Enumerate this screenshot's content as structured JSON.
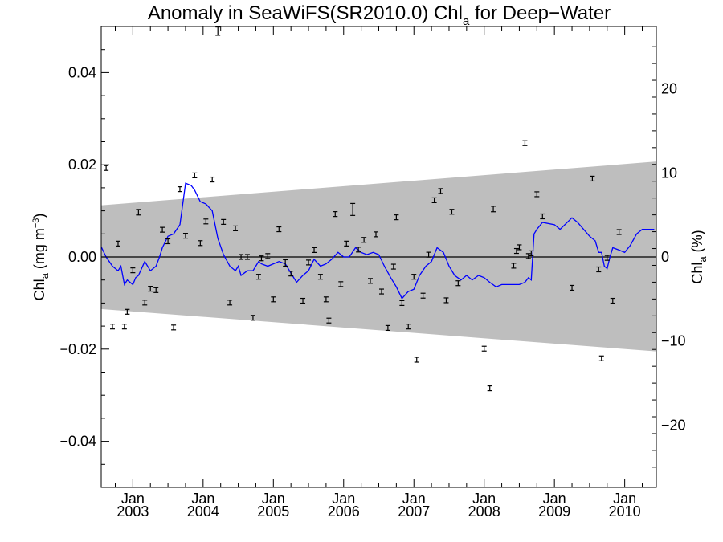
{
  "chart_data": {
    "type": "scatter",
    "title": {
      "main": "Anomaly in SeaWiFS(SR2010.0) Chl",
      "sub": "a",
      "rest": " for Deep−Water"
    },
    "ylabel_left": {
      "main": "Chl",
      "sub": "a",
      "rest": " (mg m",
      "sup": "−3",
      "end": ")"
    },
    "ylabel_right": {
      "main": "Chl",
      "sub": "a",
      "rest": " (%)"
    },
    "x_range": [
      2002.55,
      2010.45
    ],
    "y_range": [
      -0.05,
      0.05
    ],
    "y_right_range": [
      -27.4,
      27.4
    ],
    "left_ticks": [
      {
        "v": 0.04,
        "label": "0.04"
      },
      {
        "v": 0.02,
        "label": "0.02"
      },
      {
        "v": 0.0,
        "label": "0.00"
      },
      {
        "v": -0.02,
        "label": "−0.02"
      },
      {
        "v": -0.04,
        "label": "−0.04"
      }
    ],
    "right_ticks": [
      {
        "v": 20,
        "label": "20"
      },
      {
        "v": 10,
        "label": "10"
      },
      {
        "v": 0,
        "label": "0"
      },
      {
        "v": -10,
        "label": "−10"
      },
      {
        "v": -20,
        "label": "−20"
      }
    ],
    "x_ticks": [
      {
        "v": 2003.0,
        "month": "Jan",
        "year": "2003"
      },
      {
        "v": 2004.0,
        "month": "Jan",
        "year": "2004"
      },
      {
        "v": 2005.0,
        "month": "Jan",
        "year": "2005"
      },
      {
        "v": 2006.0,
        "month": "Jan",
        "year": "2006"
      },
      {
        "v": 2007.0,
        "month": "Jan",
        "year": "2007"
      },
      {
        "v": 2008.0,
        "month": "Jan",
        "year": "2008"
      },
      {
        "v": 2009.0,
        "month": "Jan",
        "year": "2009"
      },
      {
        "v": 2010.0,
        "month": "Jan",
        "year": "2010"
      }
    ],
    "band": {
      "left_x": 2002.55,
      "left_upper": 0.0112,
      "left_lower": -0.0113,
      "right_x": 2010.45,
      "right_upper": 0.0207,
      "right_lower": -0.0205,
      "color": "#bebebe"
    },
    "zero_line": 0.0,
    "points": [
      {
        "x": 2002.62,
        "y": 0.0193,
        "err": 0.0005
      },
      {
        "x": 2002.71,
        "y": -0.0151,
        "err": 0.0005
      },
      {
        "x": 2002.79,
        "y": 0.0029,
        "err": 0.0005
      },
      {
        "x": 2002.88,
        "y": -0.0151,
        "err": 0.0005
      },
      {
        "x": 2002.92,
        "y": -0.0119,
        "err": 0.0005
      },
      {
        "x": 2003.0,
        "y": -0.0029,
        "err": 0.0005
      },
      {
        "x": 2003.08,
        "y": 0.0097,
        "err": 0.0006
      },
      {
        "x": 2003.17,
        "y": -0.0099,
        "err": 0.0005
      },
      {
        "x": 2003.25,
        "y": -0.0069,
        "err": 0.0005
      },
      {
        "x": 2003.33,
        "y": -0.0072,
        "err": 0.0005
      },
      {
        "x": 2003.42,
        "y": 0.0059,
        "err": 0.0005
      },
      {
        "x": 2003.5,
        "y": 0.0034,
        "err": 0.0005
      },
      {
        "x": 2003.58,
        "y": -0.0153,
        "err": 0.0005
      },
      {
        "x": 2003.67,
        "y": 0.0147,
        "err": 0.0005
      },
      {
        "x": 2003.75,
        "y": 0.0046,
        "err": 0.0005
      },
      {
        "x": 2003.88,
        "y": 0.0177,
        "err": 0.0005
      },
      {
        "x": 2003.96,
        "y": 0.003,
        "err": 0.0005
      },
      {
        "x": 2004.04,
        "y": 0.0077,
        "err": 0.0005
      },
      {
        "x": 2004.13,
        "y": 0.0168,
        "err": 0.0005
      },
      {
        "x": 2004.21,
        "y": 0.049,
        "err": 0.0009
      },
      {
        "x": 2004.29,
        "y": 0.0076,
        "err": 0.0005
      },
      {
        "x": 2004.38,
        "y": -0.0099,
        "err": 0.0005
      },
      {
        "x": 2004.46,
        "y": 0.0062,
        "err": 0.0005
      },
      {
        "x": 2004.54,
        "y": 0.0,
        "err": 0.0005
      },
      {
        "x": 2004.63,
        "y": 0.0,
        "err": 0.0005
      },
      {
        "x": 2004.71,
        "y": -0.0132,
        "err": 0.0005
      },
      {
        "x": 2004.79,
        "y": -0.0043,
        "err": 0.0005
      },
      {
        "x": 2004.83,
        "y": -0.0003,
        "err": 0.0005
      },
      {
        "x": 2004.92,
        "y": 0.0002,
        "err": 0.0005
      },
      {
        "x": 2005.0,
        "y": -0.0092,
        "err": 0.0005
      },
      {
        "x": 2005.08,
        "y": 0.006,
        "err": 0.0005
      },
      {
        "x": 2005.17,
        "y": -0.0013,
        "err": 0.0007
      },
      {
        "x": 2005.25,
        "y": -0.0036,
        "err": 0.0005
      },
      {
        "x": 2005.42,
        "y": -0.0095,
        "err": 0.0005
      },
      {
        "x": 2005.5,
        "y": -0.0012,
        "err": 0.0005
      },
      {
        "x": 2005.58,
        "y": 0.0015,
        "err": 0.0005
      },
      {
        "x": 2005.67,
        "y": -0.0043,
        "err": 0.0005
      },
      {
        "x": 2005.75,
        "y": -0.0092,
        "err": 0.0005
      },
      {
        "x": 2005.79,
        "y": -0.0138,
        "err": 0.0005
      },
      {
        "x": 2005.88,
        "y": 0.0093,
        "err": 0.0005
      },
      {
        "x": 2005.96,
        "y": -0.0059,
        "err": 0.0005
      },
      {
        "x": 2006.04,
        "y": 0.0029,
        "err": 0.0005
      },
      {
        "x": 2006.13,
        "y": 0.0103,
        "err": 0.0013
      },
      {
        "x": 2006.21,
        "y": 0.0016,
        "err": 0.0005
      },
      {
        "x": 2006.29,
        "y": 0.0037,
        "err": 0.0005
      },
      {
        "x": 2006.38,
        "y": -0.0052,
        "err": 0.0005
      },
      {
        "x": 2006.46,
        "y": 0.0049,
        "err": 0.0005
      },
      {
        "x": 2006.54,
        "y": -0.0075,
        "err": 0.0005
      },
      {
        "x": 2006.63,
        "y": -0.0154,
        "err": 0.0005
      },
      {
        "x": 2006.71,
        "y": -0.0021,
        "err": 0.0005
      },
      {
        "x": 2006.75,
        "y": 0.0086,
        "err": 0.0005
      },
      {
        "x": 2006.83,
        "y": -0.01,
        "err": 0.0005
      },
      {
        "x": 2006.92,
        "y": -0.0151,
        "err": 0.0005
      },
      {
        "x": 2007.0,
        "y": -0.0043,
        "err": 0.0005
      },
      {
        "x": 2007.04,
        "y": -0.0223,
        "err": 0.0005
      },
      {
        "x": 2007.13,
        "y": -0.0084,
        "err": 0.0005
      },
      {
        "x": 2007.21,
        "y": 0.0005,
        "err": 0.0005
      },
      {
        "x": 2007.29,
        "y": 0.0123,
        "err": 0.0005
      },
      {
        "x": 2007.38,
        "y": 0.0143,
        "err": 0.0005
      },
      {
        "x": 2007.46,
        "y": -0.0094,
        "err": 0.0005
      },
      {
        "x": 2007.54,
        "y": 0.0098,
        "err": 0.0005
      },
      {
        "x": 2007.63,
        "y": -0.0057,
        "err": 0.0005
      },
      {
        "x": 2008.0,
        "y": -0.0199,
        "err": 0.0005
      },
      {
        "x": 2008.08,
        "y": -0.0285,
        "err": 0.0005
      },
      {
        "x": 2008.13,
        "y": 0.0104,
        "err": 0.0006
      },
      {
        "x": 2008.42,
        "y": -0.0019,
        "err": 0.0005
      },
      {
        "x": 2008.46,
        "y": 0.0013,
        "err": 0.0005
      },
      {
        "x": 2008.5,
        "y": 0.0021,
        "err": 0.0005
      },
      {
        "x": 2008.58,
        "y": 0.0247,
        "err": 0.0005
      },
      {
        "x": 2008.63,
        "y": 0.0002,
        "err": 0.0005
      },
      {
        "x": 2008.67,
        "y": 0.0008,
        "err": 0.0005
      },
      {
        "x": 2008.75,
        "y": 0.0136,
        "err": 0.0005
      },
      {
        "x": 2008.83,
        "y": 0.0088,
        "err": 0.0005
      },
      {
        "x": 2009.25,
        "y": -0.0067,
        "err": 0.0005
      },
      {
        "x": 2009.54,
        "y": 0.017,
        "err": 0.0005
      },
      {
        "x": 2009.63,
        "y": -0.0027,
        "err": 0.0005
      },
      {
        "x": 2009.67,
        "y": -0.022,
        "err": 0.0005
      },
      {
        "x": 2009.75,
        "y": -0.0002,
        "err": 0.0005
      },
      {
        "x": 2009.83,
        "y": -0.0095,
        "err": 0.0005
      },
      {
        "x": 2009.92,
        "y": 0.0054,
        "err": 0.0005
      }
    ],
    "line": {
      "color": "#0000ff",
      "x": [
        2002.55,
        2002.62,
        2002.71,
        2002.79,
        2002.83,
        2002.88,
        2002.92,
        2003.0,
        2003.04,
        2003.08,
        2003.17,
        2003.25,
        2003.33,
        2003.38,
        2003.42,
        2003.5,
        2003.58,
        2003.67,
        2003.75,
        2003.83,
        2003.88,
        2003.96,
        2004.04,
        2004.13,
        2004.21,
        2004.29,
        2004.38,
        2004.46,
        2004.5,
        2004.54,
        2004.63,
        2004.71,
        2004.75,
        2004.79,
        2004.83,
        2004.92,
        2005.0,
        2005.08,
        2005.17,
        2005.25,
        2005.33,
        2005.42,
        2005.5,
        2005.58,
        2005.67,
        2005.75,
        2005.83,
        2005.92,
        2006.0,
        2006.08,
        2006.17,
        2006.25,
        2006.33,
        2006.42,
        2006.5,
        2006.58,
        2006.67,
        2006.75,
        2006.83,
        2006.92,
        2007.0,
        2007.08,
        2007.17,
        2007.25,
        2007.33,
        2007.42,
        2007.5,
        2007.58,
        2007.67,
        2007.75,
        2007.83,
        2007.92,
        2008.0,
        2008.08,
        2008.17,
        2008.25,
        2008.33,
        2008.42,
        2008.5,
        2008.58,
        2008.63,
        2008.67,
        2008.71,
        2008.75,
        2008.83,
        2009.0,
        2009.08,
        2009.25,
        2009.33,
        2009.5,
        2009.58,
        2009.63,
        2009.67,
        2009.71,
        2009.75,
        2009.79,
        2009.83,
        2009.92,
        2010.0,
        2010.08,
        2010.17,
        2010.25,
        2010.33,
        2010.42
      ],
      "y": [
        0.0022,
        0.0,
        -0.002,
        -0.003,
        -0.002,
        -0.006,
        -0.005,
        -0.006,
        -0.0045,
        -0.004,
        -0.001,
        -0.003,
        -0.002,
        0.0,
        0.002,
        0.0045,
        0.005,
        0.007,
        0.016,
        0.0155,
        0.0145,
        0.012,
        0.0115,
        0.01,
        0.004,
        0.0005,
        -0.002,
        -0.003,
        -0.002,
        -0.004,
        -0.003,
        -0.003,
        -0.002,
        -0.001,
        -0.0015,
        -0.002,
        -0.0015,
        -0.001,
        -0.0015,
        -0.0035,
        -0.0055,
        -0.004,
        -0.003,
        -0.0005,
        -0.002,
        -0.0015,
        -0.0005,
        0.001,
        0.0,
        0.0,
        0.002,
        0.001,
        0.0005,
        0.001,
        0.0005,
        -0.002,
        -0.0045,
        -0.0065,
        -0.009,
        -0.0075,
        -0.007,
        -0.004,
        -0.002,
        -0.001,
        0.002,
        0.001,
        -0.002,
        -0.004,
        -0.005,
        -0.004,
        -0.005,
        -0.004,
        -0.0045,
        -0.0055,
        -0.0065,
        -0.006,
        -0.006,
        -0.006,
        -0.006,
        -0.0055,
        -0.0045,
        -0.005,
        0.005,
        0.006,
        0.0075,
        0.007,
        0.006,
        0.0085,
        0.0075,
        0.0045,
        0.0035,
        0.001,
        0.001,
        -0.002,
        -0.0025,
        0.0,
        0.002,
        0.0015,
        0.001,
        0.0025,
        0.005,
        0.006,
        0.006,
        0.006
      ]
    }
  }
}
